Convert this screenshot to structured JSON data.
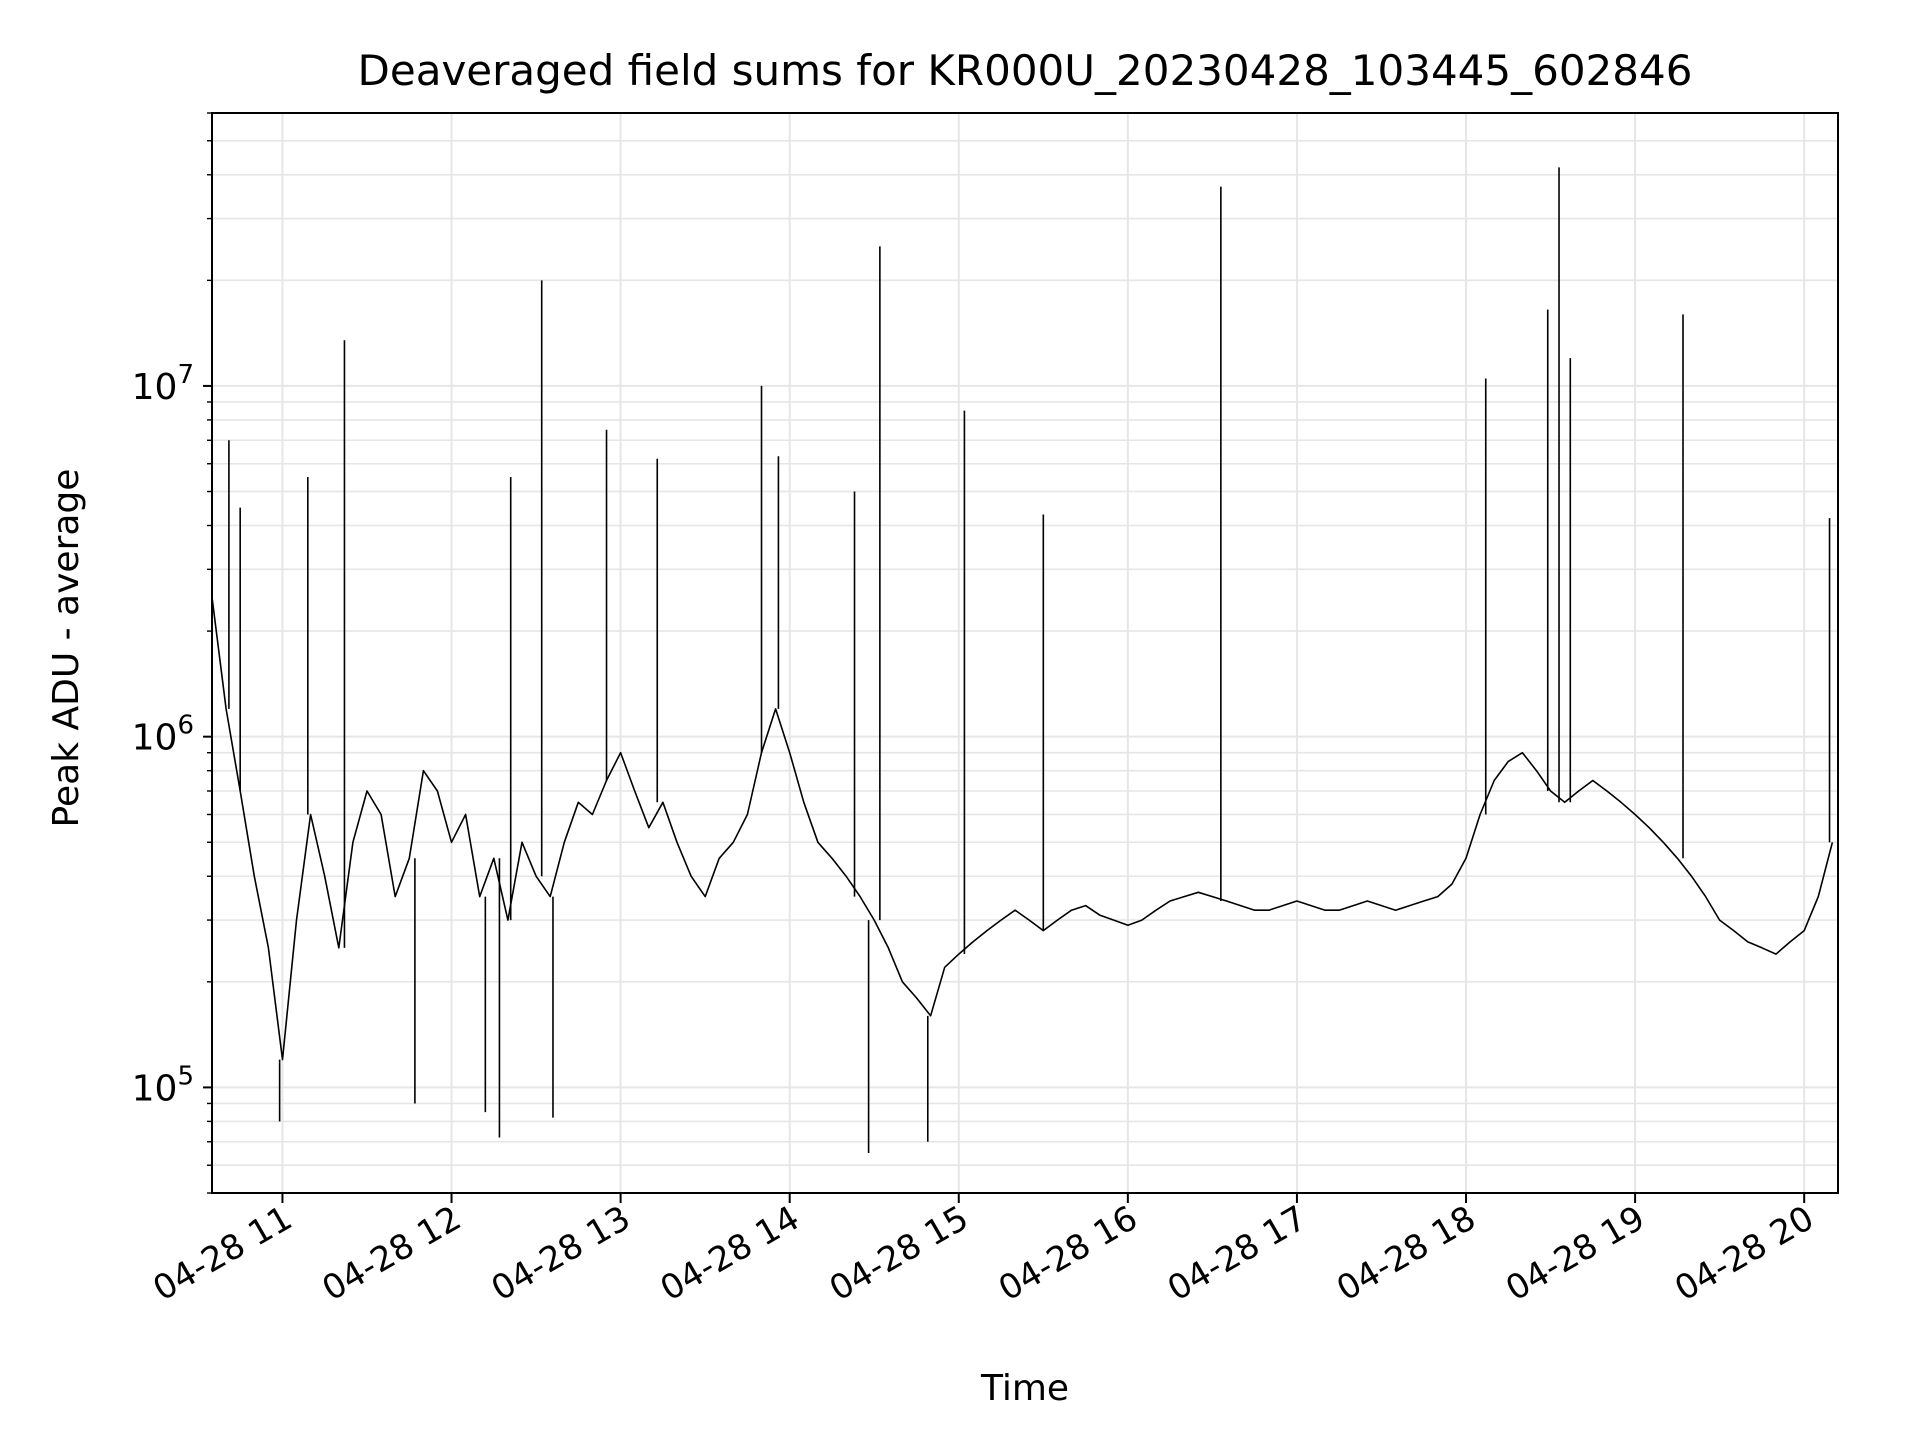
{
  "chart_data": {
    "type": "line",
    "title": "Deaveraged field sums for KR000U_20230428_103445_602846",
    "xlabel": "Time",
    "ylabel": "Peak ADU - average",
    "yscale": "log",
    "xlim": [
      "04-28 10:35",
      "04-28 20:12"
    ],
    "ylim": [
      50000,
      60000000
    ],
    "x_ticks": [
      "04-28 11",
      "04-28 12",
      "04-28 13",
      "04-28 14",
      "04-28 15",
      "04-28 16",
      "04-28 17",
      "04-28 18",
      "04-28 19",
      "04-28 20"
    ],
    "y_ticks": [
      {
        "base": "10",
        "exp": "5",
        "value": 100000
      },
      {
        "base": "10",
        "exp": "6",
        "value": 1000000
      },
      {
        "base": "10",
        "exp": "7",
        "value": 10000000
      }
    ],
    "grid": true,
    "legend": "none",
    "line_color": "#000000",
    "grid_color": "#e6e6e6",
    "series": [
      {
        "x": [
          "04-28 10:35",
          "04-28 10:40",
          "04-28 10:45",
          "04-28 10:50",
          "04-28 10:55",
          "04-28 11:00",
          "04-28 11:05",
          "04-28 11:10",
          "04-28 11:15",
          "04-28 11:20",
          "04-28 11:25",
          "04-28 11:30",
          "04-28 11:35",
          "04-28 11:40",
          "04-28 11:45",
          "04-28 11:50",
          "04-28 11:55",
          "04-28 12:00",
          "04-28 12:05",
          "04-28 12:10",
          "04-28 12:15",
          "04-28 12:20",
          "04-28 12:25",
          "04-28 12:30",
          "04-28 12:35",
          "04-28 12:40",
          "04-28 12:45",
          "04-28 12:50",
          "04-28 12:55",
          "04-28 13:00",
          "04-28 13:05",
          "04-28 13:10",
          "04-28 13:15",
          "04-28 13:20",
          "04-28 13:25",
          "04-28 13:30",
          "04-28 13:35",
          "04-28 13:40",
          "04-28 13:45",
          "04-28 13:50",
          "04-28 13:55",
          "04-28 14:00",
          "04-28 14:05",
          "04-28 14:10",
          "04-28 14:15",
          "04-28 14:20",
          "04-28 14:25",
          "04-28 14:30",
          "04-28 14:35",
          "04-28 14:40",
          "04-28 14:45",
          "04-28 14:50",
          "04-28 14:55",
          "04-28 15:00",
          "04-28 15:05",
          "04-28 15:10",
          "04-28 15:15",
          "04-28 15:20",
          "04-28 15:25",
          "04-28 15:30",
          "04-28 15:35",
          "04-28 15:40",
          "04-28 15:45",
          "04-28 15:50",
          "04-28 15:55",
          "04-28 16:00",
          "04-28 16:05",
          "04-28 16:10",
          "04-28 16:15",
          "04-28 16:20",
          "04-28 16:25",
          "04-28 16:30",
          "04-28 16:35",
          "04-28 16:40",
          "04-28 16:45",
          "04-28 16:50",
          "04-28 16:55",
          "04-28 17:00",
          "04-28 17:05",
          "04-28 17:10",
          "04-28 17:15",
          "04-28 17:20",
          "04-28 17:25",
          "04-28 17:30",
          "04-28 17:35",
          "04-28 17:40",
          "04-28 17:45",
          "04-28 17:50",
          "04-28 17:55",
          "04-28 18:00",
          "04-28 18:05",
          "04-28 18:10",
          "04-28 18:15",
          "04-28 18:20",
          "04-28 18:25",
          "04-28 18:30",
          "04-28 18:35",
          "04-28 18:40",
          "04-28 18:45",
          "04-28 18:50",
          "04-28 18:55",
          "04-28 19:00",
          "04-28 19:05",
          "04-28 19:10",
          "04-28 19:15",
          "04-28 19:20",
          "04-28 19:25",
          "04-28 19:30",
          "04-28 19:35",
          "04-28 19:40",
          "04-28 19:45",
          "04-28 19:50",
          "04-28 19:55",
          "04-28 20:00",
          "04-28 20:05",
          "04-28 20:10"
        ],
        "y": [
          2500000,
          1200000,
          700000,
          400000,
          250000,
          120000,
          300000,
          600000,
          400000,
          250000,
          500000,
          700000,
          600000,
          350000,
          450000,
          800000,
          700000,
          500000,
          600000,
          350000,
          450000,
          300000,
          500000,
          400000,
          350000,
          500000,
          650000,
          600000,
          750000,
          900000,
          700000,
          550000,
          650000,
          500000,
          400000,
          350000,
          450000,
          500000,
          600000,
          900000,
          1200000,
          900000,
          650000,
          500000,
          450000,
          400000,
          350000,
          300000,
          250000,
          200000,
          180000,
          160000,
          220000,
          240000,
          260000,
          280000,
          300000,
          320000,
          300000,
          280000,
          300000,
          320000,
          330000,
          310000,
          300000,
          290000,
          300000,
          320000,
          340000,
          350000,
          360000,
          350000,
          340000,
          330000,
          320000,
          320000,
          330000,
          340000,
          330000,
          320000,
          320000,
          330000,
          340000,
          330000,
          320000,
          330000,
          340000,
          350000,
          380000,
          450000,
          600000,
          750000,
          850000,
          900000,
          800000,
          700000,
          650000,
          700000,
          750000,
          700000,
          650000,
          600000,
          550000,
          500000,
          450000,
          400000,
          350000,
          300000,
          280000,
          260000,
          250000,
          240000,
          260000,
          280000,
          350000,
          500000
        ]
      }
    ],
    "spikes": [
      {
        "x": "04-28 10:41",
        "y": 7000000
      },
      {
        "x": "04-28 10:45",
        "y": 4500000
      },
      {
        "x": "04-28 10:59",
        "y": 80000
      },
      {
        "x": "04-28 11:09",
        "y": 5500000
      },
      {
        "x": "04-28 11:22",
        "y": 13500000
      },
      {
        "x": "04-28 11:47",
        "y": 90000
      },
      {
        "x": "04-28 12:12",
        "y": 85000
      },
      {
        "x": "04-28 12:17",
        "y": 72000
      },
      {
        "x": "04-28 12:21",
        "y": 5500000
      },
      {
        "x": "04-28 12:32",
        "y": 20000000
      },
      {
        "x": "04-28 12:36",
        "y": 82000
      },
      {
        "x": "04-28 12:55",
        "y": 7500000
      },
      {
        "x": "04-28 13:13",
        "y": 6200000
      },
      {
        "x": "04-28 13:50",
        "y": 10000000
      },
      {
        "x": "04-28 13:56",
        "y": 6300000
      },
      {
        "x": "04-28 14:23",
        "y": 5000000
      },
      {
        "x": "04-28 14:28",
        "y": 65000
      },
      {
        "x": "04-28 14:32",
        "y": 25000000
      },
      {
        "x": "04-28 14:49",
        "y": 70000
      },
      {
        "x": "04-28 15:02",
        "y": 8500000
      },
      {
        "x": "04-28 15:30",
        "y": 4300000
      },
      {
        "x": "04-28 16:33",
        "y": 37000000
      },
      {
        "x": "04-28 18:07",
        "y": 10500000
      },
      {
        "x": "04-28 18:29",
        "y": 16500000
      },
      {
        "x": "04-28 18:33",
        "y": 42000000
      },
      {
        "x": "04-28 18:37",
        "y": 12000000
      },
      {
        "x": "04-28 19:17",
        "y": 16000000
      },
      {
        "x": "04-28 20:09",
        "y": 4200000
      }
    ]
  }
}
